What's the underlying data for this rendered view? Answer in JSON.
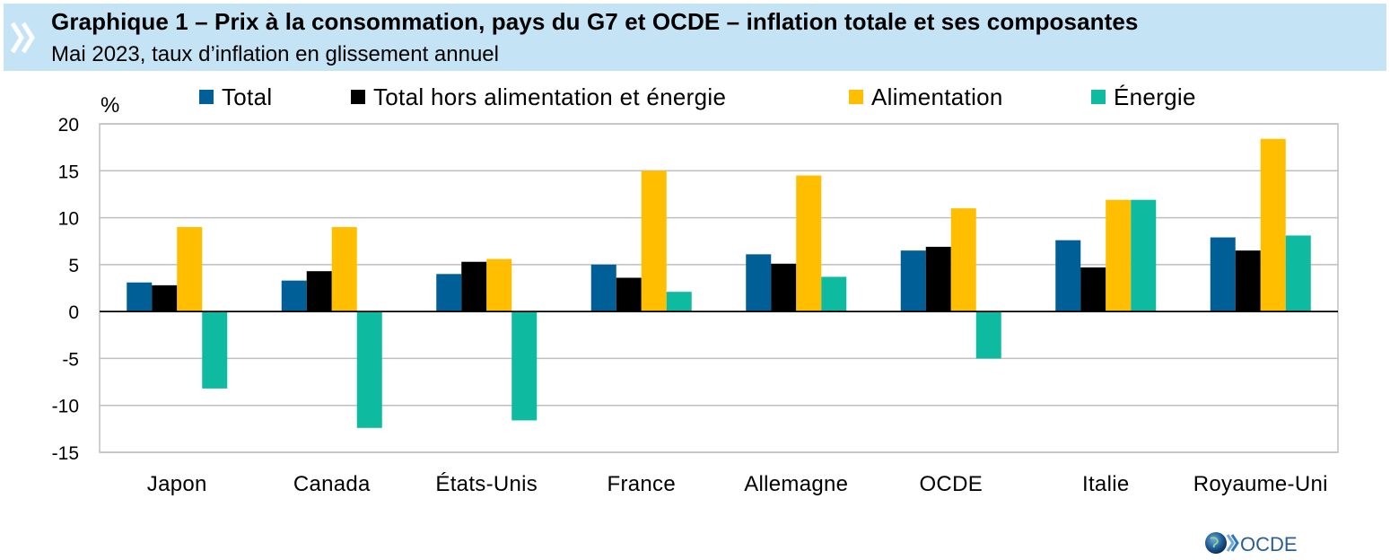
{
  "header": {
    "title": "Graphique 1 – Prix à la consommation, pays du G7 et OCDE – inflation totale et ses composantes",
    "subtitle": "Mai 2023, taux d’inflation en glissement annuel"
  },
  "logo": {
    "text": "OCDE",
    "icon": "oecd-globe-icon"
  },
  "chart_data": {
    "type": "bar",
    "ylabel": "%",
    "ylim": [
      -15,
      20
    ],
    "yticks": [
      20,
      15,
      10,
      5,
      0,
      -5,
      -10,
      -15
    ],
    "grid": true,
    "legend_position": "top",
    "categories": [
      "Japon",
      "Canada",
      "États-Unis",
      "France",
      "Allemagne",
      "OCDE",
      "Italie",
      "Royaume-Uni"
    ],
    "series": [
      {
        "name": "Total",
        "color": "#005f96",
        "values": [
          3.1,
          3.3,
          4.0,
          5.0,
          6.1,
          6.5,
          7.6,
          7.9
        ]
      },
      {
        "name": "Total hors alimentation et énergie",
        "color": "#000000",
        "values": [
          2.8,
          4.3,
          5.3,
          3.6,
          5.1,
          6.9,
          4.7,
          6.5
        ]
      },
      {
        "name": "Alimentation",
        "color": "#ffbf00",
        "values": [
          9.0,
          9.0,
          5.6,
          15.0,
          14.5,
          11.0,
          11.9,
          18.4
        ]
      },
      {
        "name": "Énergie",
        "color": "#0fbba0",
        "values": [
          -8.2,
          -12.4,
          -11.6,
          2.1,
          3.7,
          -5.0,
          11.9,
          8.1
        ]
      }
    ]
  }
}
